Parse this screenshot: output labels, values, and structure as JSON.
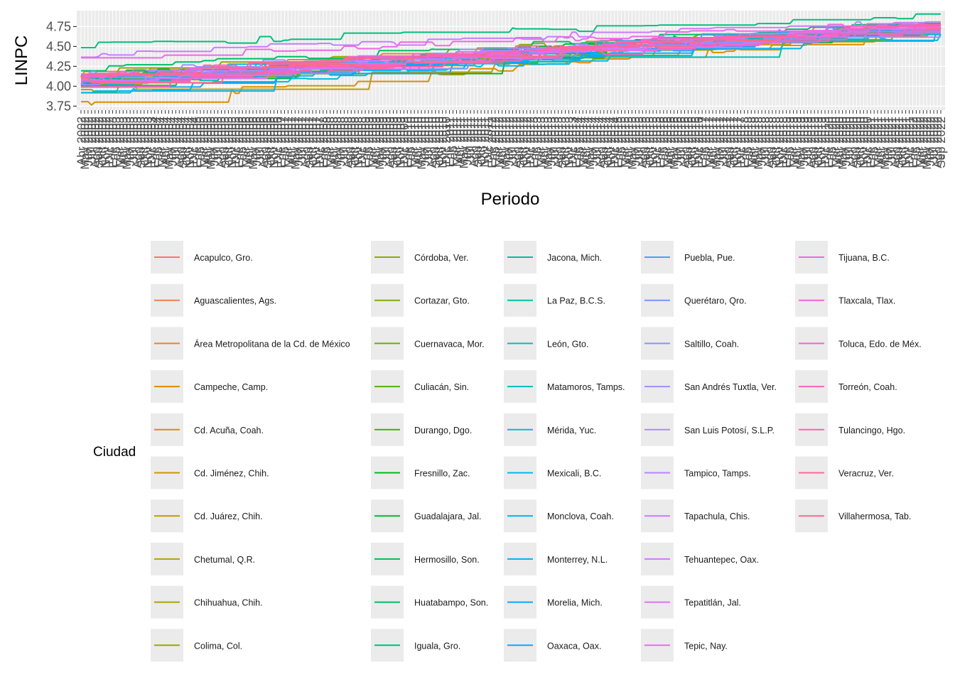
{
  "chart_data": {
    "type": "line",
    "xlabel": "Periodo",
    "ylabel": "LINPC",
    "ylim": [
      3.7,
      4.95
    ],
    "yticks": [
      3.75,
      4.0,
      4.25,
      4.5,
      4.75
    ],
    "ytick_labels": [
      "3.75",
      "4.00",
      "4.25",
      "4.50",
      "4.75"
    ],
    "x_first": "Abr 2002",
    "x_last": "Sep 2022",
    "x_count": 246,
    "legend_title": "Ciudad",
    "legend_position": "bottom",
    "grid": true,
    "background": "#ebebeb",
    "series": [
      {
        "name": "Acapulco, Gro.",
        "color": "#F8766D",
        "start": 4.12,
        "end": 4.78
      },
      {
        "name": "Aguascalientes, Ags.",
        "color": "#F27D52",
        "start": 4.05,
        "end": 4.72
      },
      {
        "name": "Área Metropolitana de la Cd. de México",
        "color": "#EA8331",
        "start": 4.15,
        "end": 4.8
      },
      {
        "name": "Campeche, Camp.",
        "color": "#E08A00",
        "start": 4.08,
        "end": 4.75
      },
      {
        "name": "Cd. Acuña, Coah.",
        "color": "#D89000",
        "start": 3.78,
        "end": 4.7
      },
      {
        "name": "Cd. Jiménez, Chih.",
        "color": "#CD9600",
        "start": 4.0,
        "end": 4.74
      },
      {
        "name": "Cd. Juárez, Chih.",
        "color": "#C29B00",
        "start": 3.95,
        "end": 4.68
      },
      {
        "name": "Chetumal, Q.R.",
        "color": "#B79F00",
        "start": 4.1,
        "end": 4.77
      },
      {
        "name": "Chihuahua, Chih.",
        "color": "#ABA300",
        "start": 4.02,
        "end": 4.73
      },
      {
        "name": "Colima, Col.",
        "color": "#9DA700",
        "start": 4.06,
        "end": 4.76
      },
      {
        "name": "Córdoba, Ver.",
        "color": "#8EAB00",
        "start": 4.18,
        "end": 4.79
      },
      {
        "name": "Cortazar, Gto.",
        "color": "#7CAE00",
        "start": 4.04,
        "end": 4.71
      },
      {
        "name": "Cuernavaca, Mor.",
        "color": "#68B100",
        "start": 4.11,
        "end": 4.78
      },
      {
        "name": "Culiacán, Sin.",
        "color": "#53B400",
        "start": 4.07,
        "end": 4.74
      },
      {
        "name": "Durango, Dgo.",
        "color": "#39B600",
        "start": 4.03,
        "end": 4.76
      },
      {
        "name": "Fresnillo, Zac.",
        "color": "#00B81F",
        "start": 4.0,
        "end": 4.72
      },
      {
        "name": "Guadalajara, Jal.",
        "color": "#00BA38",
        "start": 4.13,
        "end": 4.8
      },
      {
        "name": "Hermosillo, Son.",
        "color": "#00BC4F",
        "start": 4.09,
        "end": 4.75
      },
      {
        "name": "Huatabampo, Son.",
        "color": "#00BE67",
        "start": 4.22,
        "end": 4.82
      },
      {
        "name": "Iguala, Gro.",
        "color": "#00BF7D",
        "start": 4.52,
        "end": 4.88
      },
      {
        "name": "Jacona, Mich.",
        "color": "#00C094",
        "start": 4.05,
        "end": 4.73
      },
      {
        "name": "La Paz, B.C.S.",
        "color": "#00C1AA",
        "start": 4.01,
        "end": 4.7
      },
      {
        "name": "León, Gto.",
        "color": "#00C0BE",
        "start": 4.1,
        "end": 4.77
      },
      {
        "name": "Matamoros, Tamps.",
        "color": "#00BFC4",
        "start": 4.06,
        "end": 4.74
      },
      {
        "name": "Mérida, Yuc.",
        "color": "#00BCD8",
        "start": 3.92,
        "end": 4.69
      },
      {
        "name": "Mexicali, B.C.",
        "color": "#00B8E7",
        "start": 4.14,
        "end": 4.79
      },
      {
        "name": "Monclova, Coah.",
        "color": "#00B4F0",
        "start": 3.94,
        "end": 4.66
      },
      {
        "name": "Monterrey, N.L.",
        "color": "#00AFF7",
        "start": 4.08,
        "end": 4.76
      },
      {
        "name": "Morelia, Mich.",
        "color": "#00A9FF",
        "start": 4.03,
        "end": 4.72
      },
      {
        "name": "Oaxaca, Oax.",
        "color": "#14A2FF",
        "start": 3.96,
        "end": 4.7
      },
      {
        "name": "Puebla, Pue.",
        "color": "#529BFF",
        "start": 4.12,
        "end": 4.81
      },
      {
        "name": "Querétaro, Qro.",
        "color": "#7098FF",
        "start": 4.07,
        "end": 4.75
      },
      {
        "name": "Saltillo, Coah.",
        "color": "#8794FF",
        "start": 4.02,
        "end": 4.73
      },
      {
        "name": "San Andrés Tuxtla, Ver.",
        "color": "#9990FF",
        "start": 4.16,
        "end": 4.78
      },
      {
        "name": "San Luis Potosí, S.L.P.",
        "color": "#A98BFF",
        "start": 4.1,
        "end": 4.77
      },
      {
        "name": "Tampico, Tamps.",
        "color": "#B983FF",
        "start": 4.05,
        "end": 4.74
      },
      {
        "name": "Tapachula, Chis.",
        "color": "#C77CFF",
        "start": 4.4,
        "end": 4.82
      },
      {
        "name": "Tehuantepec, Oax.",
        "color": "#D277FA",
        "start": 4.08,
        "end": 4.76
      },
      {
        "name": "Tepatitlán, Jal.",
        "color": "#DD72F4",
        "start": 4.04,
        "end": 4.72
      },
      {
        "name": "Tepic, Nay.",
        "color": "#E56EEC",
        "start": 4.11,
        "end": 4.78
      },
      {
        "name": "Tijuana, B.C.",
        "color": "#ED69E2",
        "start": 4.35,
        "end": 4.8
      },
      {
        "name": "Tlaxcala, Tlax.",
        "color": "#F365D7",
        "start": 4.06,
        "end": 4.75
      },
      {
        "name": "Toluca, Edo. de Méx.",
        "color": "#F862C9",
        "start": 4.13,
        "end": 4.79
      },
      {
        "name": "Torreón, Coah.",
        "color": "#FC61BB",
        "start": 4.01,
        "end": 4.72
      },
      {
        "name": "Tulancingo, Hgo.",
        "color": "#FF62AC",
        "start": 4.09,
        "end": 4.76
      },
      {
        "name": "Veracruz, Ver.",
        "color": "#FF659C",
        "start": 4.15,
        "end": 4.79
      },
      {
        "name": "Villahermosa, Tab.",
        "color": "#FC6A8B",
        "start": 4.07,
        "end": 4.74
      }
    ]
  }
}
